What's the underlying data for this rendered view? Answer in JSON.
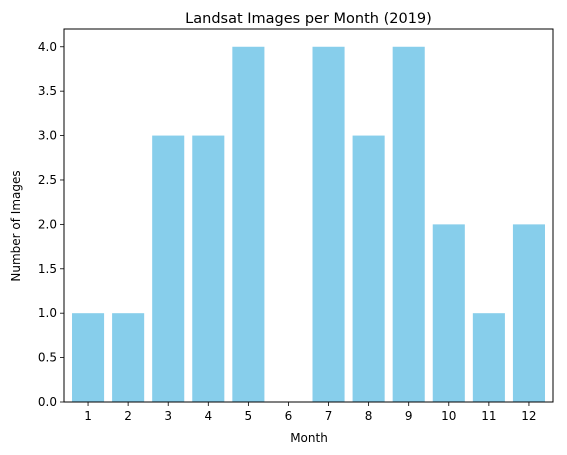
{
  "chart_data": {
    "type": "bar",
    "title": "Landsat Images per Month (2019)",
    "xlabel": "Month",
    "ylabel": "Number of Images",
    "categories": [
      "1",
      "2",
      "3",
      "4",
      "5",
      "6",
      "7",
      "8",
      "9",
      "10",
      "11",
      "12"
    ],
    "values": [
      1,
      1,
      3,
      3,
      4,
      0,
      4,
      3,
      4,
      2,
      1,
      2
    ],
    "ylim": [
      0,
      4.2
    ],
    "yticks": [
      "0.0",
      "0.5",
      "1.0",
      "1.5",
      "2.0",
      "2.5",
      "3.0",
      "3.5",
      "4.0"
    ],
    "bar_color": "#87ceeb",
    "grid": false,
    "legend": "none"
  }
}
